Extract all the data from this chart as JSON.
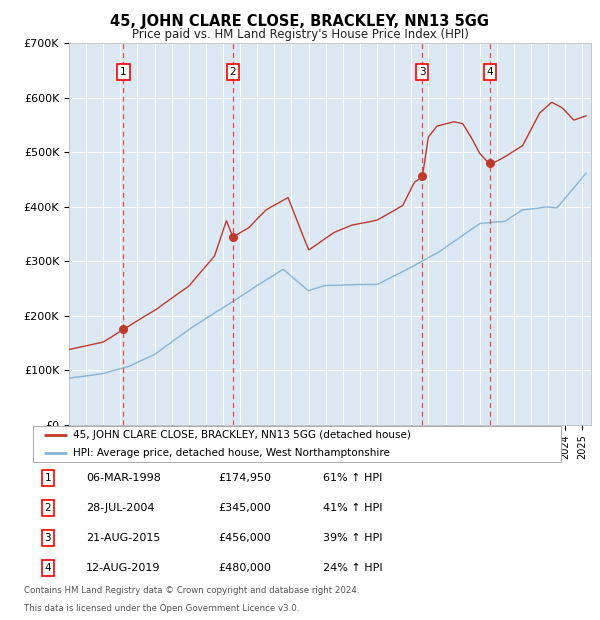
{
  "title": "45, JOHN CLARE CLOSE, BRACKLEY, NN13 5GG",
  "subtitle": "Price paid vs. HM Land Registry's House Price Index (HPI)",
  "legend_line1": "45, JOHN CLARE CLOSE, BRACKLEY, NN13 5GG (detached house)",
  "legend_line2": "HPI: Average price, detached house, West Northamptonshire",
  "footer_line1": "Contains HM Land Registry data © Crown copyright and database right 2024.",
  "footer_line2": "This data is licensed under the Open Government Licence v3.0.",
  "transactions": [
    {
      "num": 1,
      "date": "06-MAR-1998",
      "price": 174950,
      "year": 1998.18,
      "pct": "61%",
      "dir": "↑"
    },
    {
      "num": 2,
      "date": "28-JUL-2004",
      "price": 345000,
      "year": 2004.57,
      "pct": "41%",
      "dir": "↑"
    },
    {
      "num": 3,
      "date": "21-AUG-2015",
      "price": 456000,
      "year": 2015.64,
      "pct": "39%",
      "dir": "↑"
    },
    {
      "num": 4,
      "date": "12-AUG-2019",
      "price": 480000,
      "year": 2019.61,
      "pct": "24%",
      "dir": "↑"
    }
  ],
  "xmin": 1995,
  "xmax": 2025.5,
  "ymin": 0,
  "ymax": 700000,
  "yticks": [
    0,
    100000,
    200000,
    300000,
    400000,
    500000,
    600000,
    700000
  ],
  "ytick_labels": [
    "£0",
    "£100K",
    "£200K",
    "£300K",
    "£400K",
    "£500K",
    "£600K",
    "£700K"
  ],
  "background_color": "#ffffff",
  "plot_bg_color": "#dce9f5",
  "grid_color": "#ffffff",
  "hpi_line_color": "#8ab4d4",
  "price_line_color": "#c0392b",
  "vline_color": "#e05050",
  "dot_color": "#c0392b",
  "hpi_anchors_x": [
    1995.0,
    1997.0,
    1998.5,
    2000.0,
    2002.0,
    2004.0,
    2007.5,
    2009.0,
    2010.0,
    2013.0,
    2015.0,
    2016.5,
    2019.0,
    2020.5,
    2021.5,
    2023.0,
    2023.5,
    2025.2
  ],
  "hpi_anchors_y": [
    85000,
    95000,
    108000,
    130000,
    175000,
    215000,
    285000,
    245000,
    255000,
    258000,
    290000,
    315000,
    370000,
    375000,
    395000,
    400000,
    398000,
    460000
  ],
  "price_anchors_x": [
    1995.0,
    1997.0,
    1998.18,
    2000.0,
    2002.0,
    2003.5,
    2004.2,
    2004.57,
    2005.5,
    2006.5,
    2007.8,
    2009.0,
    2010.5,
    2011.5,
    2013.0,
    2014.5,
    2015.2,
    2015.64,
    2016.0,
    2016.5,
    2017.5,
    2018.0,
    2018.5,
    2019.0,
    2019.61,
    2020.5,
    2021.5,
    2022.5,
    2023.2,
    2023.8,
    2024.5,
    2025.2
  ],
  "price_anchors_y": [
    138000,
    152000,
    174950,
    210000,
    255000,
    310000,
    375000,
    345000,
    362000,
    395000,
    418000,
    322000,
    355000,
    368000,
    378000,
    405000,
    448000,
    456000,
    530000,
    550000,
    558000,
    555000,
    530000,
    500000,
    480000,
    495000,
    515000,
    575000,
    595000,
    585000,
    562000,
    570000
  ]
}
